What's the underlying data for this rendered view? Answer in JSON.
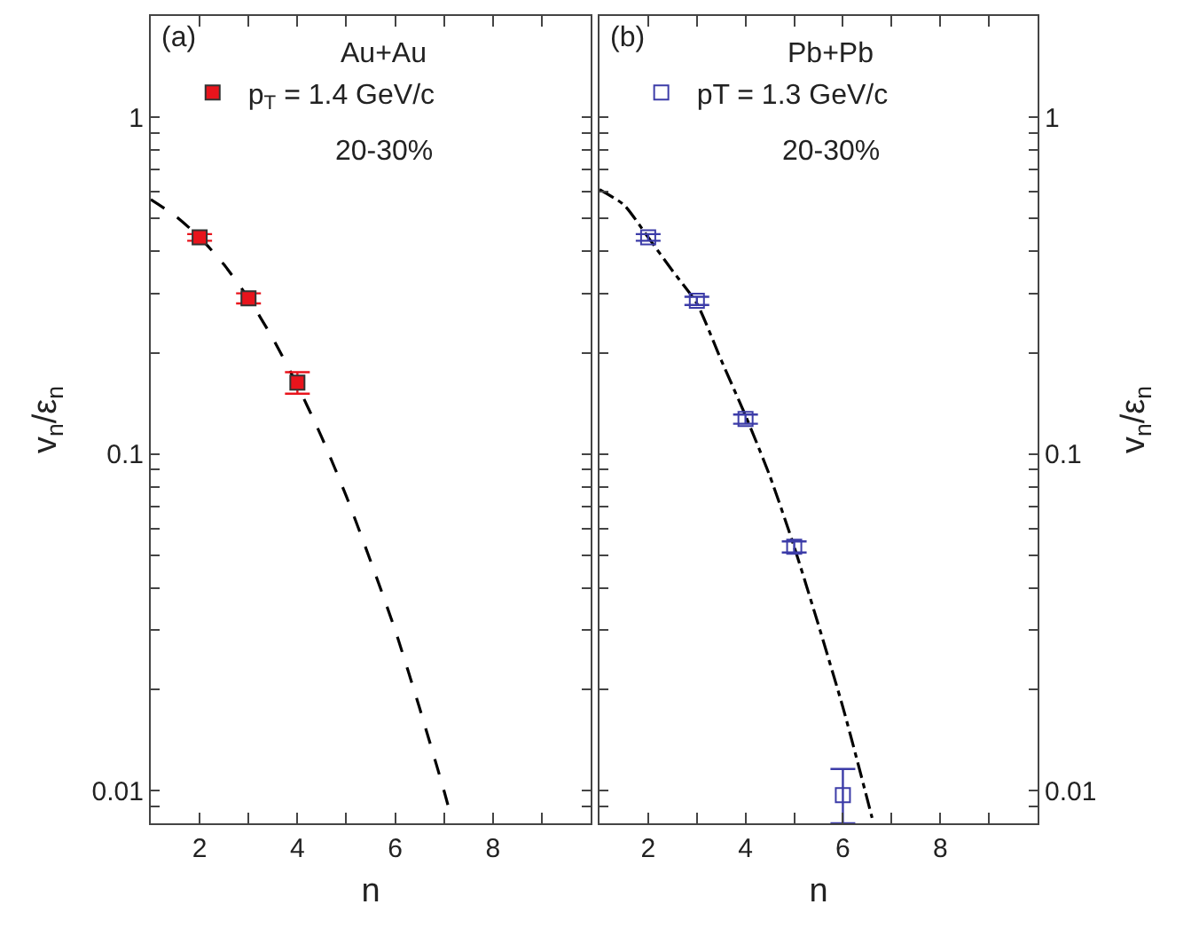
{
  "chart_data": [
    {
      "type": "scatter",
      "annotations": [
        "(a)",
        "Au+Au",
        "20-30%"
      ],
      "xlabel": "n",
      "ylabel": "v$_{n}$/ε$_{n}$",
      "log": "y",
      "legend": "top",
      "grid": false,
      "xlim": [
        1,
        10
      ],
      "xticks": [
        2,
        {
          "value": 3,
          "label": null
        },
        4,
        {
          "value": 5,
          "label": null
        },
        6,
        {
          "value": 7,
          "label": null
        },
        8,
        {
          "value": 9,
          "label": null
        }
      ],
      "ylim": [
        0.008,
        2
      ],
      "yticks": [
        {
          "value": 0.009,
          "label": null
        },
        0.01,
        {
          "value": 0.02,
          "label": null
        },
        {
          "value": 0.03,
          "label": null
        },
        {
          "value": 0.04,
          "label": null
        },
        {
          "value": 0.05,
          "label": null
        },
        {
          "value": 0.06,
          "label": null
        },
        {
          "value": 0.07,
          "label": null
        },
        {
          "value": 0.08,
          "label": null
        },
        {
          "value": 0.09,
          "label": null
        },
        0.1,
        {
          "value": 0.2,
          "label": null
        },
        {
          "value": 0.3,
          "label": null
        },
        {
          "value": 0.4,
          "label": null
        },
        {
          "value": 0.5,
          "label": null
        },
        {
          "value": 0.6,
          "label": null
        },
        {
          "value": 0.7,
          "label": null
        },
        {
          "value": 0.8,
          "label": null
        },
        {
          "value": 0.9,
          "label": null
        },
        1
      ],
      "series": [
        {
          "type": "line",
          "color": "#000000",
          "line_style": "dashed",
          "marker": "none",
          "x": [
            1,
            1.5,
            2,
            2.5,
            3,
            3.5,
            4,
            4.5,
            5,
            5.5,
            6,
            6.5,
            7,
            7.16
          ],
          "values": [
            0.57,
            0.51,
            0.44,
            0.365,
            0.29,
            0.22,
            0.16,
            0.112,
            0.075,
            0.048,
            0.03,
            0.0176,
            0.01,
            0.0082
          ]
        },
        {
          "type": "scatter",
          "name": "p$_{T}$ = 1.4 GeV/c",
          "color": "#e8141c",
          "marker": "square",
          "x": [
            2,
            3,
            4
          ],
          "values": [
            0.44,
            0.29,
            0.163
          ],
          "errors": [
            0.01,
            0.01,
            0.012
          ]
        }
      ]
    },
    {
      "type": "scatter",
      "annotations": [
        "(b)",
        "Pb+Pb",
        "20-30%"
      ],
      "xlabel": "n",
      "ylabel": "v$_{n}$/ε$_{n}$",
      "log": "y",
      "legend": "top",
      "grid": false,
      "xlim": [
        1,
        10
      ],
      "xticks": [
        2,
        {
          "value": 3,
          "label": null
        },
        4,
        {
          "value": 5,
          "label": null
        },
        6,
        {
          "value": 7,
          "label": null
        },
        8,
        {
          "value": 9,
          "label": null
        }
      ],
      "ylim": [
        0.008,
        2
      ],
      "yticks": [
        {
          "value": 0.009,
          "label": null
        },
        0.01,
        {
          "value": 0.02,
          "label": null
        },
        {
          "value": 0.03,
          "label": null
        },
        {
          "value": 0.04,
          "label": null
        },
        {
          "value": 0.05,
          "label": null
        },
        {
          "value": 0.06,
          "label": null
        },
        {
          "value": 0.07,
          "label": null
        },
        {
          "value": 0.08,
          "label": null
        },
        {
          "value": 0.09,
          "label": null
        },
        0.1,
        {
          "value": 0.2,
          "label": null
        },
        {
          "value": 0.3,
          "label": null
        },
        {
          "value": 0.4,
          "label": null
        },
        {
          "value": 0.5,
          "label": null
        },
        {
          "value": 0.6,
          "label": null
        },
        {
          "value": 0.7,
          "label": null
        },
        {
          "value": 0.8,
          "label": null
        },
        {
          "value": 0.9,
          "label": null
        },
        1
      ],
      "series": [
        {
          "type": "line",
          "color": "#000000",
          "line_style": "dashdot",
          "marker": "none",
          "x": [
            1,
            1.5,
            2,
            2.5,
            3,
            3.5,
            4,
            4.5,
            5,
            5.5,
            6,
            6.3,
            6.6
          ],
          "values": [
            0.61,
            0.55,
            0.44,
            0.35,
            0.28,
            0.19,
            0.13,
            0.086,
            0.053,
            0.031,
            0.0177,
            0.0122,
            0.0083
          ]
        },
        {
          "type": "scatter",
          "name": "pT = 1.3 GeV/c",
          "color": "#3c3ca8",
          "marker": "square-open",
          "x": [
            2,
            3,
            4,
            5,
            6
          ],
          "values": [
            0.44,
            0.285,
            0.127,
            0.053,
            0.0097
          ],
          "errors": [
            0.01,
            0.008,
            0.004,
            0.002,
            [
              0.008,
              0.0116
            ]
          ]
        }
      ]
    }
  ]
}
